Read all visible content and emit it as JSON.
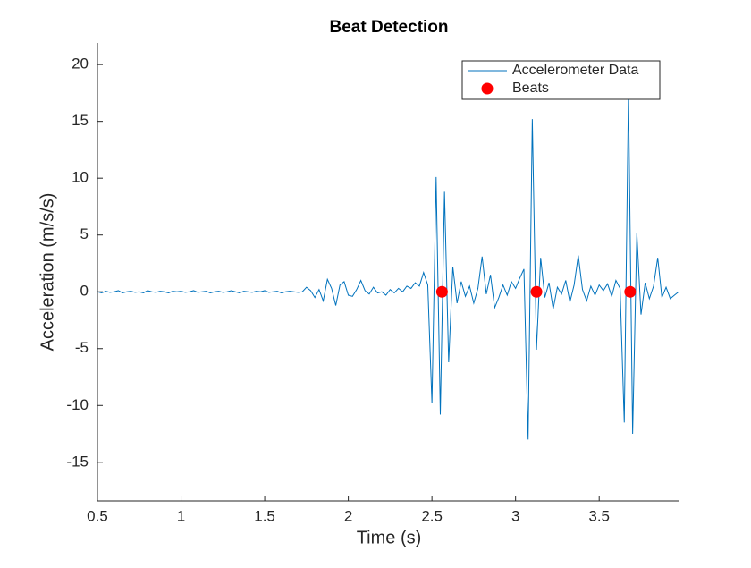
{
  "chart_data": {
    "type": "line",
    "title": "Beat Detection",
    "x_label": "Time (s)",
    "y_label": "Acceleration (m/s/s)",
    "xlim": [
      0.5,
      3.98
    ],
    "ylim": [
      -18.4,
      21.9
    ],
    "xticks": [
      0.5,
      1,
      1.5,
      2,
      2.5,
      3,
      3.5
    ],
    "yticks": [
      -15,
      -10,
      -5,
      0,
      5,
      10,
      15,
      20
    ],
    "grid": false,
    "legend": "northeast",
    "series": [
      {
        "name": "Accelerometer Data",
        "type": "line",
        "color": "#0072bd",
        "x": [
          0.5,
          0.525,
          0.55,
          0.575,
          0.6,
          0.625,
          0.65,
          0.675,
          0.7,
          0.725,
          0.75,
          0.775,
          0.8,
          0.825,
          0.85,
          0.875,
          0.9,
          0.925,
          0.95,
          0.975,
          1.0,
          1.025,
          1.05,
          1.075,
          1.1,
          1.125,
          1.15,
          1.175,
          1.2,
          1.225,
          1.25,
          1.275,
          1.3,
          1.325,
          1.35,
          1.375,
          1.4,
          1.425,
          1.45,
          1.475,
          1.5,
          1.525,
          1.55,
          1.575,
          1.6,
          1.625,
          1.65,
          1.675,
          1.7,
          1.725,
          1.75,
          1.775,
          1.8,
          1.825,
          1.85,
          1.875,
          1.9,
          1.925,
          1.95,
          1.975,
          2.0,
          2.025,
          2.05,
          2.075,
          2.1,
          2.125,
          2.15,
          2.175,
          2.2,
          2.225,
          2.25,
          2.275,
          2.3,
          2.325,
          2.35,
          2.375,
          2.4,
          2.425,
          2.45,
          2.475,
          2.5,
          2.525,
          2.55,
          2.575,
          2.6,
          2.625,
          2.65,
          2.675,
          2.7,
          2.725,
          2.75,
          2.775,
          2.8,
          2.825,
          2.85,
          2.875,
          2.9,
          2.925,
          2.95,
          2.975,
          3.0,
          3.025,
          3.05,
          3.075,
          3.1,
          3.125,
          3.15,
          3.175,
          3.2,
          3.225,
          3.25,
          3.275,
          3.3,
          3.325,
          3.35,
          3.375,
          3.4,
          3.425,
          3.45,
          3.475,
          3.5,
          3.525,
          3.55,
          3.575,
          3.6,
          3.625,
          3.65,
          3.675,
          3.7,
          3.725,
          3.75,
          3.775,
          3.8,
          3.825,
          3.85,
          3.875,
          3.9,
          3.925,
          3.95,
          3.975
        ],
        "values": [
          0.0,
          -0.1,
          0.05,
          -0.05,
          0.0,
          0.1,
          -0.1,
          0.0,
          0.05,
          -0.05,
          0.0,
          -0.1,
          0.1,
          0.0,
          -0.05,
          0.05,
          0.0,
          -0.1,
          0.05,
          0.0,
          0.05,
          -0.05,
          0.0,
          0.1,
          -0.05,
          0.0,
          0.05,
          -0.1,
          0.0,
          0.05,
          -0.05,
          0.0,
          0.1,
          0.0,
          -0.1,
          0.05,
          0.0,
          -0.05,
          0.05,
          0.0,
          0.1,
          -0.05,
          0.0,
          0.05,
          -0.1,
          0.0,
          0.05,
          0.0,
          -0.05,
          0.0,
          0.4,
          0.1,
          -0.5,
          0.2,
          -0.8,
          1.1,
          0.3,
          -1.2,
          0.6,
          0.9,
          -0.3,
          -0.4,
          0.2,
          1.0,
          0.1,
          -0.2,
          0.4,
          -0.1,
          0.0,
          -0.3,
          0.2,
          -0.1,
          0.3,
          0.0,
          0.5,
          0.3,
          0.8,
          0.5,
          1.7,
          0.6,
          -9.8,
          10.1,
          -10.8,
          8.8,
          -6.2,
          2.2,
          -1.0,
          0.9,
          -0.4,
          0.5,
          -1.0,
          0.3,
          3.1,
          -0.2,
          1.5,
          -1.4,
          -0.5,
          0.6,
          -0.3,
          0.9,
          0.3,
          1.2,
          2.0,
          -13.0,
          15.2,
          -5.1,
          3.0,
          -0.5,
          0.8,
          -1.5,
          0.4,
          -0.2,
          1.0,
          -0.9,
          0.6,
          3.2,
          0.2,
          -0.8,
          0.5,
          -0.3,
          0.6,
          0.1,
          0.7,
          -0.4,
          1.0,
          0.3,
          -11.5,
          17.5,
          -12.5,
          5.2,
          -2.0,
          0.8,
          -0.6,
          0.5,
          3.0,
          -0.5,
          0.4,
          -0.6,
          -0.3,
          0.0
        ]
      },
      {
        "name": "Beats",
        "type": "scatter",
        "color": "#ff0000",
        "x": [
          2.56,
          3.125,
          3.685
        ],
        "values": [
          0,
          0,
          0
        ]
      }
    ]
  }
}
